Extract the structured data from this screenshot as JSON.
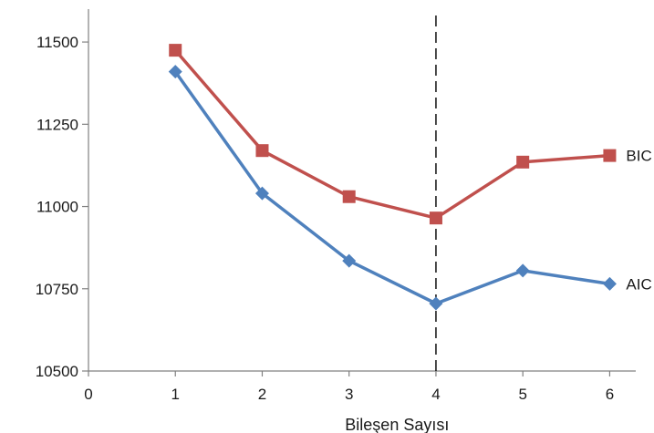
{
  "chart_data": {
    "type": "line",
    "title": "",
    "xlabel": "Bileşen Sayısı",
    "ylabel": "",
    "xlim": [
      0,
      6.3
    ],
    "ylim": [
      10500,
      11600
    ],
    "xticks": [
      "0",
      "1",
      "2",
      "3",
      "4",
      "5",
      "6"
    ],
    "yticks": [
      "10500",
      "10750",
      "11000",
      "11250",
      "11500"
    ],
    "grid": false,
    "legend": "inline-right",
    "reference_line": {
      "x": 4,
      "style": "dashed"
    },
    "x": [
      1,
      2,
      3,
      4,
      5,
      6
    ],
    "series": [
      {
        "name": "BIC",
        "marker": "square",
        "color": "#c0504d",
        "values": [
          11475,
          11170,
          11030,
          10965,
          11135,
          11155
        ]
      },
      {
        "name": "AIC",
        "marker": "diamond",
        "color": "#4f81bd",
        "values": [
          11410,
          11040,
          10835,
          10705,
          10805,
          10765
        ]
      }
    ]
  }
}
